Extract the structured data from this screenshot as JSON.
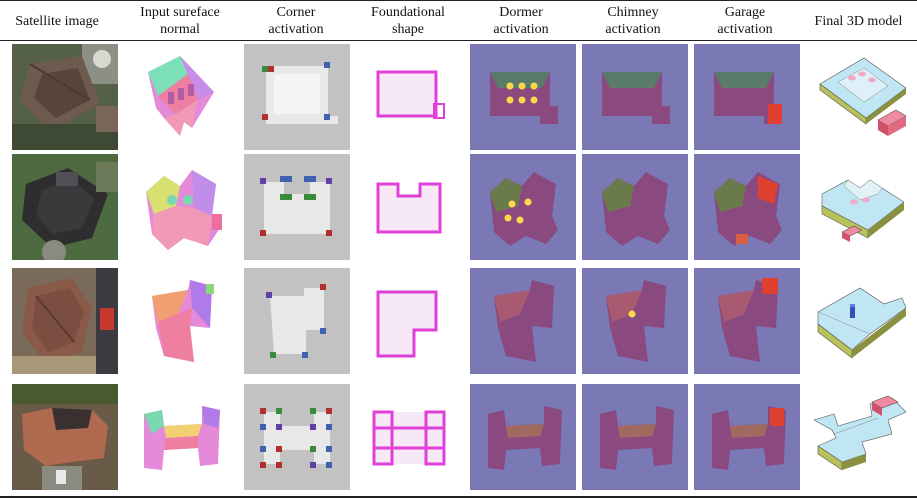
{
  "columns": [
    {
      "line1": "Satellite image",
      "line2": ""
    },
    {
      "line1": "Input sureface",
      "line2": "normal"
    },
    {
      "line1": "Corner",
      "line2": "activation"
    },
    {
      "line1": "Foundational",
      "line2": "shape"
    },
    {
      "line1": "Dormer",
      "line2": "activation"
    },
    {
      "line1": "Chimney",
      "line2": "activation"
    },
    {
      "line1": "Garage",
      "line2": "activation"
    },
    {
      "line1": "Final 3D model",
      "line2": ""
    }
  ],
  "rows": [
    {
      "footprint": "rectangle with garage extension",
      "dormers": 6,
      "chimney_markers": 0,
      "garage": "lower-right"
    },
    {
      "footprint": "U-shaped with side garage",
      "dormers": 4,
      "chimney_markers": 0,
      "garage": "right"
    },
    {
      "footprint": "L-shaped",
      "dormers": 0,
      "chimney_markers": 1,
      "garage": "top-right"
    },
    {
      "footprint": "H-shaped",
      "dormers": 0,
      "chimney_markers": 0,
      "garage": "top-right"
    }
  ],
  "colors": {
    "activation_background": "#7a79b6",
    "corner_background": "#c2c2c2",
    "foundation_outline": "#e040d8",
    "garage_marker": "#e04030",
    "model_roof": "#bfe6f2",
    "model_wall": "#b9c25a",
    "model_garage": "#f08aa0"
  }
}
